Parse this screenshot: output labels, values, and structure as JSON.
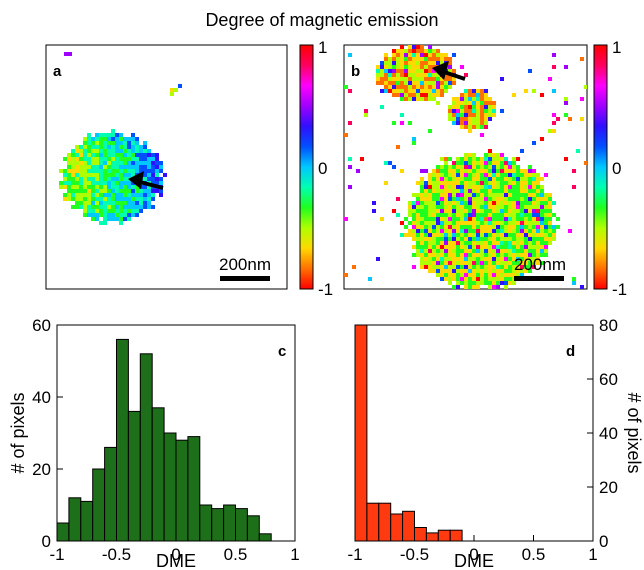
{
  "title": "Degree of magnetic emission",
  "colors": {
    "bar_c": "#1e6f1a",
    "bar_d": "#ff3a10",
    "bar_edge": "#000000",
    "colormap": [
      "#ff0000",
      "#ff7000",
      "#ffd800",
      "#b0ff00",
      "#20ff20",
      "#00ffb0",
      "#00c8ff",
      "#0050ff",
      "#3010ff",
      "#a000ff",
      "#ff00ff",
      "#ff0060",
      "#ff0000"
    ]
  },
  "maps": [
    {
      "panel": "a",
      "colorbar_ticks": [
        "1",
        "0",
        "-1"
      ],
      "colorbar_range": [
        -1,
        1
      ],
      "scale_bar_label": "200nm",
      "arrow": "arrow-icon"
    },
    {
      "panel": "b",
      "colorbar_ticks": [
        "1",
        "0",
        "-1"
      ],
      "colorbar_range": [
        -1,
        1
      ],
      "scale_bar_label": "200nm",
      "arrow": "arrow-icon"
    }
  ],
  "chart_data": [
    {
      "type": "bar",
      "panel": "c",
      "bin_edges": [
        -1.0,
        -0.9,
        -0.8,
        -0.7,
        -0.6,
        -0.5,
        -0.4,
        -0.3,
        -0.2,
        -0.1,
        0.0,
        0.1,
        0.2,
        0.3,
        0.4,
        0.5,
        0.6,
        0.7,
        0.8
      ],
      "values": [
        5,
        12,
        11,
        20,
        26,
        56,
        36,
        52,
        37,
        30,
        28,
        29,
        10,
        9,
        10,
        9,
        7,
        2
      ],
      "xlabel": "DME",
      "ylabel": "# of pixels",
      "xlim": [
        -1,
        1
      ],
      "ylim": [
        0,
        60
      ],
      "xticks": [
        "-1",
        "-0.5",
        "0",
        "0.5",
        "1"
      ],
      "yticks": [
        "0",
        "20",
        "40",
        "60"
      ],
      "yaxis_side": "left"
    },
    {
      "type": "bar",
      "panel": "d",
      "bin_edges": [
        -1.0,
        -0.9,
        -0.8,
        -0.7,
        -0.6,
        -0.5,
        -0.4,
        -0.3,
        -0.2,
        -0.1
      ],
      "values": [
        80,
        14,
        14,
        10,
        11,
        5,
        3,
        4,
        4
      ],
      "xlabel": "DME",
      "ylabel": "# of pixels",
      "xlim": [
        -1,
        1
      ],
      "ylim": [
        0,
        80
      ],
      "xticks": [
        "-1",
        "-0.5",
        "0",
        "0.5",
        "1"
      ],
      "yticks": [
        "0",
        "20",
        "40",
        "60",
        "80"
      ],
      "yaxis_side": "right"
    }
  ]
}
